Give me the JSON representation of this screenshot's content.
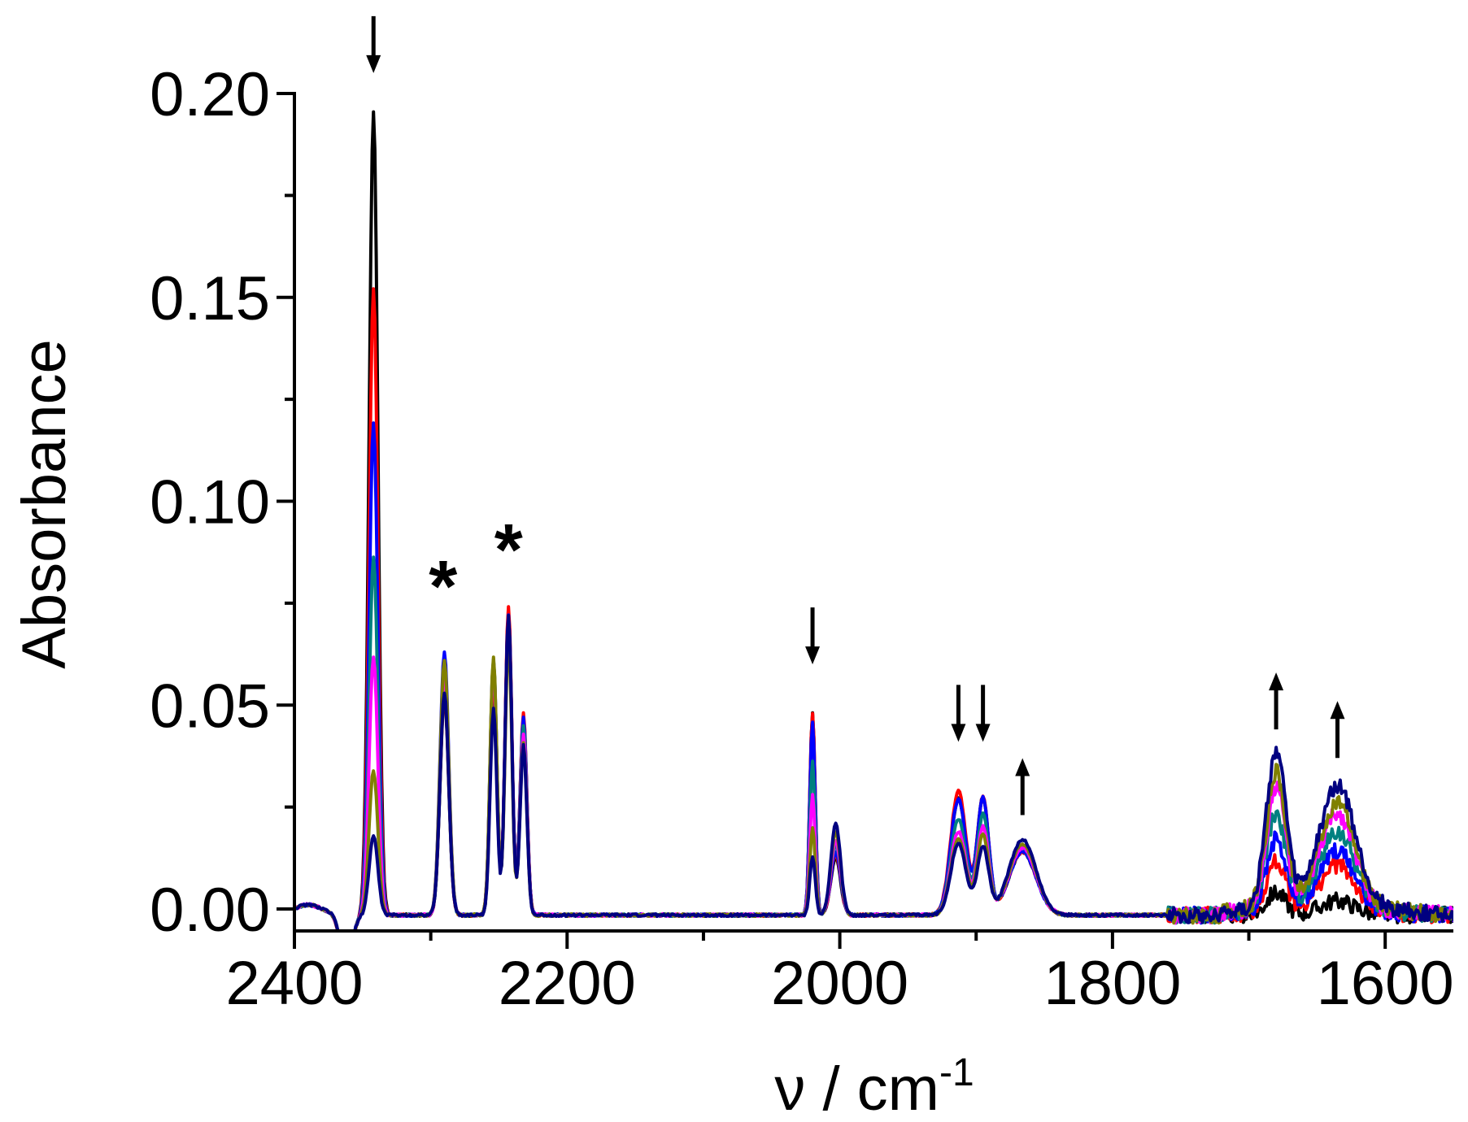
{
  "chart_data": {
    "type": "line",
    "title": "",
    "xlabel": "ν / cm",
    "xlabel_sup": "-1",
    "ylabel": "Absorbance",
    "xlim": [
      2400,
      1550
    ],
    "ylim": [
      -0.006,
      0.2
    ],
    "x_ticks": [
      2400,
      2200,
      2000,
      1800,
      1600
    ],
    "x_tick_labels": [
      "2400",
      "2200",
      "2000",
      "1800",
      "1600"
    ],
    "x_minor_ticks": [
      2300,
      2100,
      1900,
      1700
    ],
    "y_ticks": [
      0.0,
      0.05,
      0.1,
      0.15,
      0.2
    ],
    "y_tick_labels": [
      "0.00",
      "0.05",
      "0.10",
      "0.15",
      "0.20"
    ],
    "y_minor_ticks": [
      0.025,
      0.075,
      0.125,
      0.175
    ],
    "grid": false,
    "legend": "none",
    "series": [
      {
        "color": "#000000",
        "scale": 1.0,
        "values": [
          0.1955,
          0.052,
          0.054,
          0.072,
          0.047,
          0.048,
          0.0125,
          0.027,
          0.027,
          0.014,
          0.004,
          0.002
        ]
      },
      {
        "color": "#ff0000",
        "scale": 0.8,
        "values": [
          0.152,
          0.053,
          0.058,
          0.074,
          0.048,
          0.048,
          0.0135,
          0.029,
          0.027,
          0.014,
          0.011,
          0.01
        ]
      },
      {
        "color": "#0000ff",
        "scale": 0.65,
        "values": [
          0.119,
          0.063,
          0.061,
          0.072,
          0.047,
          0.046,
          0.014,
          0.027,
          0.027,
          0.014,
          0.016,
          0.013
        ]
      },
      {
        "color": "#008080",
        "scale": 0.48,
        "values": [
          0.086,
          0.054,
          0.061,
          0.07,
          0.045,
          0.036,
          0.016,
          0.022,
          0.023,
          0.015,
          0.022,
          0.017
        ]
      },
      {
        "color": "#ff00ff",
        "scale": 0.35,
        "values": [
          0.062,
          0.058,
          0.06,
          0.07,
          0.043,
          0.028,
          0.017,
          0.019,
          0.02,
          0.015,
          0.028,
          0.021
        ]
      },
      {
        "color": "#808000",
        "scale": 0.2,
        "values": [
          0.034,
          0.061,
          0.062,
          0.066,
          0.041,
          0.02,
          0.019,
          0.017,
          0.018,
          0.016,
          0.031,
          0.023
        ]
      },
      {
        "color": "#000080",
        "scale": 0.1,
        "values": [
          0.018,
          0.053,
          0.049,
          0.072,
          0.04,
          0.013,
          0.021,
          0.016,
          0.015,
          0.017,
          0.036,
          0.027
        ]
      }
    ],
    "peak_positions_cm1": [
      2342,
      2290,
      2254,
      2243,
      2232,
      2020,
      2003,
      1913,
      1895,
      1866,
      1680,
      1635
    ],
    "annotations": [
      {
        "type": "arrow-down",
        "x": 2342,
        "y": 0.205
      },
      {
        "type": "arrow-down",
        "x": 2020,
        "y": 0.06
      },
      {
        "type": "arrow-down",
        "x": 1913,
        "y": 0.041
      },
      {
        "type": "arrow-down",
        "x": 1895,
        "y": 0.041
      },
      {
        "type": "arrow-up",
        "x": 1866,
        "y": 0.037
      },
      {
        "type": "arrow-up",
        "x": 1680,
        "y": 0.058
      },
      {
        "type": "arrow-up",
        "x": 1635,
        "y": 0.051
      },
      {
        "type": "star",
        "text": "*",
        "x": 2291,
        "y": 0.073
      },
      {
        "type": "star",
        "text": "*",
        "x": 2243,
        "y": 0.082
      }
    ]
  }
}
